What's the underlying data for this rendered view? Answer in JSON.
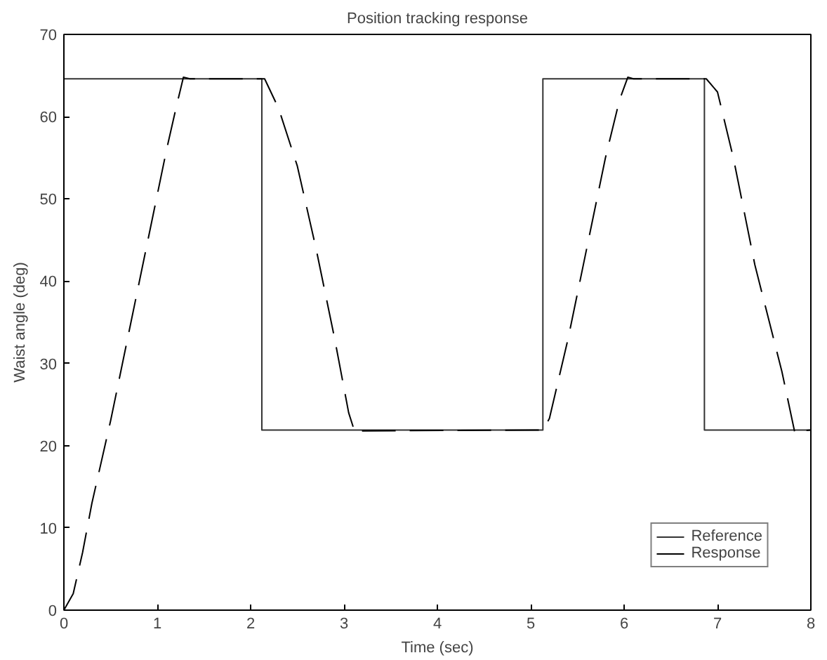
{
  "chart_data": {
    "type": "line",
    "title": "Position tracking response",
    "xlabel": "Time (sec)",
    "ylabel": "Waist angle (deg)",
    "xlim": [
      0,
      8
    ],
    "ylim": [
      0,
      70
    ],
    "xticks": [
      0,
      1,
      2,
      3,
      4,
      5,
      6,
      7,
      8
    ],
    "yticks": [
      0,
      10,
      20,
      30,
      40,
      50,
      60,
      70
    ],
    "grid": false,
    "legend": "bottom right",
    "series": [
      {
        "name": "Reference",
        "color": "#333333",
        "line_style": "solid",
        "x": [
          0,
          2.12,
          2.12,
          5.13,
          5.13,
          6.86,
          6.86,
          8
        ],
        "values": [
          64.6,
          64.6,
          21.9,
          21.9,
          64.6,
          64.6,
          21.9,
          21.9
        ]
      },
      {
        "name": "Response",
        "color": "#000000",
        "line_style": "dashed",
        "x": [
          0,
          0.1,
          0.2,
          0.3,
          0.5,
          0.7,
          0.9,
          1.1,
          1.2,
          1.28,
          1.35,
          2.15,
          2.3,
          2.5,
          2.7,
          2.9,
          3.05,
          3.12,
          3.2,
          5.13,
          5.2,
          5.4,
          5.6,
          5.8,
          5.95,
          6.04,
          6.1,
          6.88,
          7.0,
          7.17,
          7.4,
          7.69,
          7.83,
          7.9,
          8
        ],
        "values": [
          0,
          2,
          7,
          13,
          23,
          34,
          45,
          56,
          61,
          64.8,
          64.6,
          64.6,
          61,
          54,
          44,
          33,
          24,
          21.5,
          21.8,
          21.9,
          23.3,
          33,
          44,
          55,
          62,
          64.8,
          64.6,
          64.6,
          63,
          55,
          42,
          29,
          21.5,
          21.8,
          21.9
        ]
      }
    ]
  }
}
